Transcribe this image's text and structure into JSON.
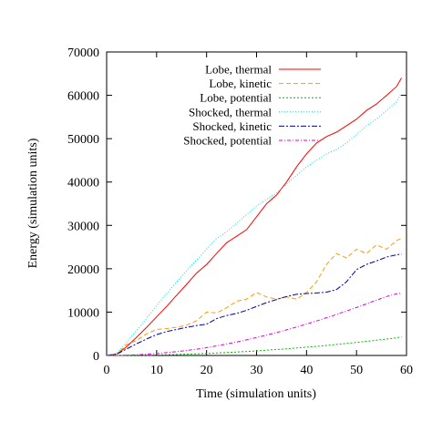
{
  "chart_data": {
    "type": "line",
    "xlabel": "Time (simulation units)",
    "ylabel": "Energy (simulation units)",
    "xlim": [
      0,
      60
    ],
    "ylim": [
      0,
      70000
    ],
    "x_ticks": [
      0,
      10,
      20,
      30,
      40,
      50,
      60
    ],
    "y_ticks": [
      0,
      10000,
      20000,
      30000,
      40000,
      50000,
      60000,
      70000
    ],
    "x_tick_labels": [
      "0",
      "10",
      "20",
      "30",
      "40",
      "50",
      "60"
    ],
    "y_tick_labels": [
      "0",
      "10000",
      "20000",
      "30000",
      "40000",
      "50000",
      "60000",
      "70000"
    ],
    "grid": false,
    "legend_position": "top-left",
    "x": [
      0,
      2,
      4,
      6,
      8,
      10,
      12,
      14,
      16,
      18,
      20,
      22,
      24,
      26,
      28,
      30,
      32,
      34,
      36,
      38,
      40,
      42,
      44,
      46,
      48,
      50,
      52,
      54,
      56,
      58,
      59
    ],
    "series": [
      {
        "name": "Lobe, thermal",
        "color": "#ff0000",
        "dash": "",
        "values": [
          0,
          300,
          2000,
          4200,
          6500,
          8900,
          11300,
          13900,
          16400,
          19000,
          21000,
          23500,
          26000,
          27500,
          29000,
          32000,
          35000,
          37000,
          40000,
          43500,
          46500,
          49000,
          50500,
          51500,
          53000,
          54500,
          56500,
          58000,
          60000,
          62000,
          64000
        ]
      },
      {
        "name": "Lobe, kinetic",
        "color": "#ff9900",
        "dash": "5,3",
        "values": [
          0,
          300,
          2500,
          3500,
          5000,
          6000,
          6200,
          6500,
          7000,
          8000,
          10000,
          9800,
          11000,
          12500,
          13000,
          14500,
          13500,
          13000,
          13500,
          13000,
          14500,
          17000,
          21000,
          23500,
          22500,
          24500,
          23500,
          25500,
          24500,
          26500,
          27000
        ]
      },
      {
        "name": "Lobe, potential",
        "color": "#00bb00",
        "dash": "2,2",
        "values": [
          0,
          5,
          20,
          40,
          70,
          110,
          160,
          220,
          290,
          370,
          460,
          560,
          670,
          790,
          920,
          1060,
          1210,
          1370,
          1540,
          1720,
          1910,
          2110,
          2320,
          2540,
          2770,
          3010,
          3260,
          3520,
          3790,
          4070,
          4300
        ]
      },
      {
        "name": "Shocked, thermal",
        "color": "#00dddd",
        "dash": "1,2",
        "values": [
          0,
          500,
          3000,
          5800,
          8600,
          11500,
          14200,
          17000,
          19600,
          22000,
          24500,
          27000,
          28500,
          30500,
          32500,
          34500,
          36000,
          37500,
          39500,
          41500,
          43500,
          45000,
          46500,
          47500,
          49000,
          51000,
          53000,
          54500,
          56500,
          58500,
          60500
        ]
      },
      {
        "name": "Shocked, kinetic",
        "color": "#0000aa",
        "dash": "6,2,2,2",
        "values": [
          0,
          300,
          1500,
          2700,
          3800,
          4800,
          5500,
          6000,
          6500,
          6900,
          7200,
          8500,
          9200,
          9700,
          10400,
          11300,
          12200,
          12900,
          13600,
          14100,
          14300,
          14400,
          14600,
          15200,
          17000,
          19800,
          21000,
          21800,
          22700,
          23200,
          23400
        ]
      },
      {
        "name": "Shocked, potential",
        "color": "#dd00dd",
        "dash": "4,2,1,2",
        "values": [
          0,
          10,
          60,
          150,
          280,
          450,
          650,
          880,
          1150,
          1450,
          1800,
          2200,
          2650,
          3100,
          3600,
          4150,
          4700,
          5300,
          5900,
          6550,
          7250,
          7950,
          8700,
          9450,
          10250,
          11050,
          11900,
          12750,
          13600,
          14200,
          14400
        ]
      }
    ]
  }
}
